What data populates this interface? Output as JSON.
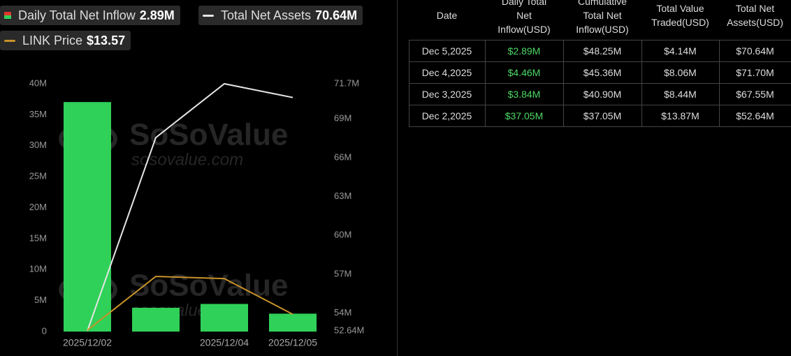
{
  "chart_data": {
    "type": "combo",
    "categories": [
      "2025/12/02",
      null,
      "2025/12/04",
      "2025/12/05"
    ],
    "series": [
      {
        "name": "Daily Total Net Inflow",
        "type": "bar",
        "axis": "y",
        "color": "#30d158",
        "legend_value": "2.89M",
        "values": [
          37.05,
          3.84,
          4.46,
          2.89
        ]
      },
      {
        "name": "Total Net Assets",
        "type": "line",
        "axis": "y2",
        "color": "#e6e6e6",
        "legend_value": "70.64M",
        "values": [
          52.64,
          67.55,
          71.7,
          70.64
        ]
      },
      {
        "name": "LINK Price",
        "type": "line",
        "color": "#c8922a",
        "legend_value": "$13.57",
        "values": [
          13.2,
          14.45,
          14.4,
          13.57
        ]
      }
    ],
    "ylim": [
      0,
      40
    ],
    "yticks": [
      0,
      {
        "value": 5,
        "label": "5M"
      },
      {
        "value": 10,
        "label": "10M"
      },
      {
        "value": 15,
        "label": "15M"
      },
      {
        "value": 20,
        "label": "20M"
      },
      {
        "value": 25,
        "label": "25M"
      },
      {
        "value": 30,
        "label": "30M"
      },
      {
        "value": 35,
        "label": "35M"
      },
      {
        "value": 40,
        "label": "40M"
      }
    ],
    "y2lim": [
      52.64,
      71.7
    ],
    "y2ticks": [
      {
        "value": 52.64,
        "label": "52.64M"
      },
      {
        "value": 54,
        "label": "54M"
      },
      {
        "value": 57,
        "label": "57M"
      },
      {
        "value": 60,
        "label": "60M"
      },
      {
        "value": 63,
        "label": "63M"
      },
      {
        "value": 66,
        "label": "66M"
      },
      {
        "value": 69,
        "label": "69M"
      },
      {
        "value": 71.7,
        "label": "71.7M"
      }
    ],
    "watermark": [
      "SoSoValue",
      "sosovalue.com"
    ]
  },
  "table": {
    "headers": [
      "Date",
      "Daily Total Net Inflow(USD)",
      "Cumulative Total Net Inflow(USD)",
      "Total Value Traded(USD)",
      "Total Net Assets(USD)"
    ],
    "rows": [
      [
        "Dec 5,2025",
        "$2.89M",
        "$48.25M",
        "$4.14M",
        "$70.64M"
      ],
      [
        "Dec 4,2025",
        "$4.46M",
        "$45.36M",
        "$8.06M",
        "$71.70M"
      ],
      [
        "Dec 3,2025",
        "$3.84M",
        "$40.90M",
        "$8.44M",
        "$67.55M"
      ],
      [
        "Dec 2,2025",
        "$37.05M",
        "$37.05M",
        "$13.87M",
        "$52.64M"
      ]
    ]
  }
}
